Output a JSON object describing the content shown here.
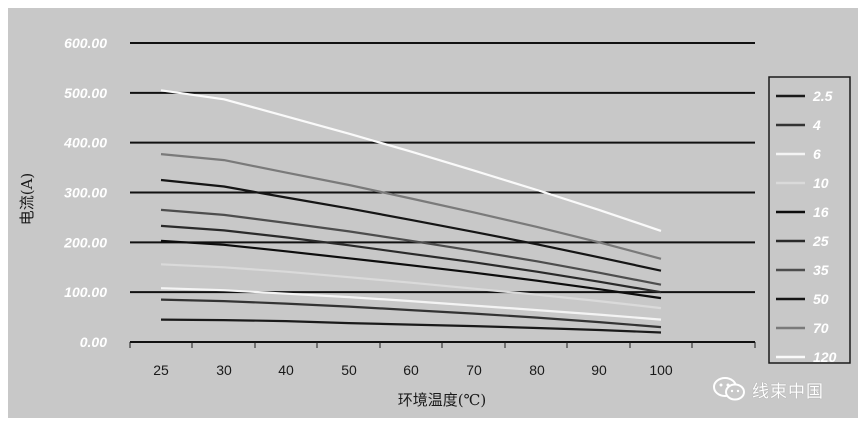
{
  "chart_data": {
    "type": "line",
    "title": "",
    "xlabel": "环境温度(℃)",
    "ylabel": "电流(A)",
    "x": [
      25,
      30,
      40,
      50,
      60,
      70,
      80,
      90,
      100
    ],
    "x_tick_labels": [
      "25",
      "30",
      "40",
      "50",
      "60",
      "70",
      "80",
      "90",
      "100"
    ],
    "ylim": [
      0,
      600
    ],
    "y_tick_labels": [
      "0.00",
      "100.00",
      "200.00",
      "300.00",
      "400.00",
      "500.00",
      "600.00"
    ],
    "grid": "horizontal",
    "legend_position": "right",
    "series": [
      {
        "name": "2.5",
        "color": "#1a1a1a",
        "values": [
          45,
          44,
          42,
          38,
          35,
          32,
          28,
          24,
          19
        ]
      },
      {
        "name": "4",
        "color": "#333333",
        "values": [
          85,
          82,
          77,
          71,
          64,
          57,
          49,
          40,
          30
        ]
      },
      {
        "name": "6",
        "color": "#f4f4f4",
        "values": [
          108,
          104,
          97,
          90,
          82,
          73,
          64,
          55,
          45
        ]
      },
      {
        "name": "10",
        "color": "#dadada",
        "values": [
          156,
          150,
          141,
          130,
          119,
          107,
          95,
          82,
          68
        ]
      },
      {
        "name": "16",
        "color": "#0d0d0d",
        "values": [
          203,
          195,
          182,
          168,
          154,
          139,
          123,
          106,
          88
        ]
      },
      {
        "name": "25",
        "color": "#2a2a2a",
        "values": [
          233,
          224,
          210,
          194,
          177,
          160,
          141,
          121,
          100
        ]
      },
      {
        "name": "35",
        "color": "#4d4d4d",
        "values": [
          265,
          255,
          239,
          222,
          203,
          183,
          162,
          139,
          115
        ]
      },
      {
        "name": "50",
        "color": "#151515",
        "values": [
          325,
          312,
          290,
          268,
          245,
          221,
          196,
          170,
          143
        ]
      },
      {
        "name": "70",
        "color": "#7a7a7a",
        "values": [
          377,
          365,
          340,
          315,
          288,
          260,
          231,
          200,
          167
        ]
      },
      {
        "name": "120",
        "color": "#fafafa",
        "values": [
          505,
          487,
          453,
          418,
          382,
          344,
          305,
          265,
          223
        ]
      }
    ]
  },
  "watermark": {
    "icon": "wechat-icon",
    "text": "线束中国"
  }
}
